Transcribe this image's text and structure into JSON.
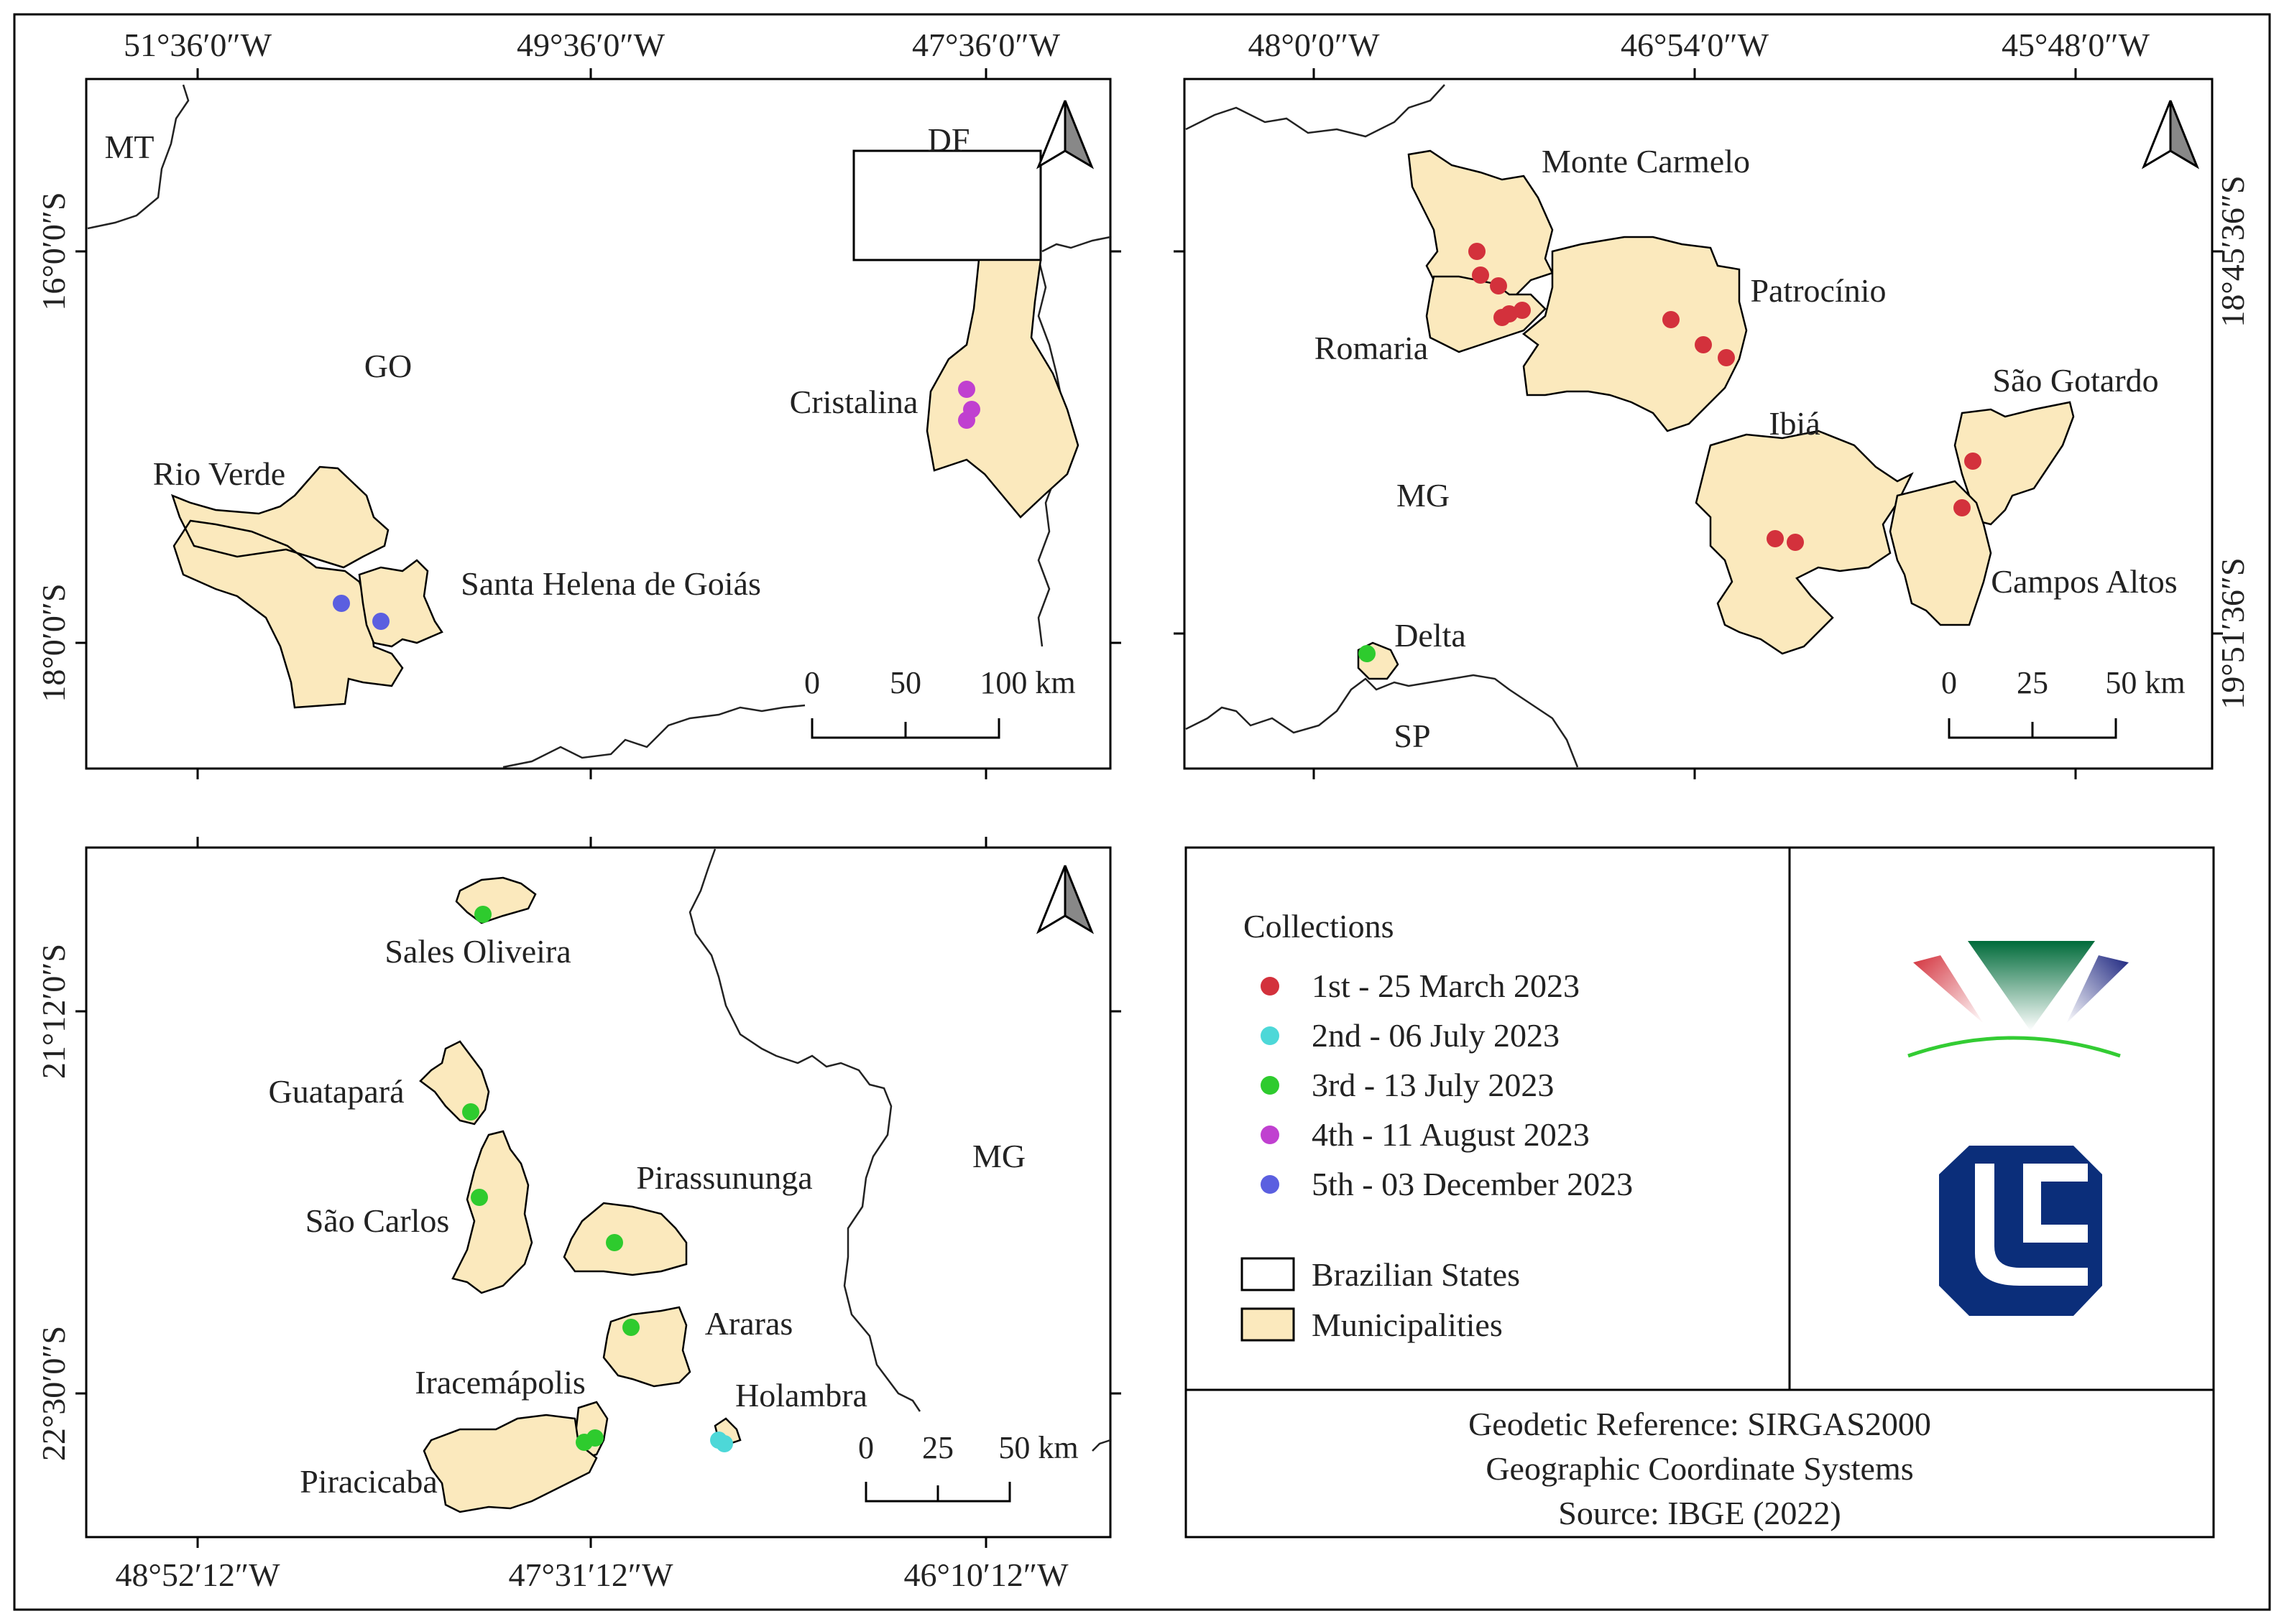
{
  "colors": {
    "municipality_fill": "#fbe9bd",
    "collection_1": "#d3313c",
    "collection_2": "#4dd8d8",
    "collection_3": "#2ecb2e",
    "collection_4": "#c040d0",
    "collection_5": "#5b5fe0",
    "logo_red": "#d3313c",
    "logo_green": "#006b3a",
    "logo_navy": "#1a237e",
    "logo_line": "#33cc33",
    "ufu_blue": "#0b2e7a"
  },
  "map_goias": {
    "top_ticks": [
      "51°36′0″W",
      "49°36′0″W",
      "47°36′0″W"
    ],
    "left_ticks": [
      "16°0′0″S",
      "18°0′0″S"
    ],
    "states": [
      "MT",
      "DF",
      "GO"
    ],
    "places": [
      "Rio Verde",
      "Santa Helena de Goiás",
      "Cristalina"
    ],
    "scale": {
      "labels": [
        "0",
        "50",
        "100 km"
      ]
    },
    "north_arrow": "north-arrow"
  },
  "map_minas": {
    "top_ticks": [
      "48°0′0″W",
      "46°54′0″W",
      "45°48′0″W"
    ],
    "right_ticks": [
      "18°45′36″S",
      "19°51′36″S"
    ],
    "states": [
      "MG",
      "SP"
    ],
    "places": [
      "Monte Carmelo",
      "Patrocínio",
      "Romaria",
      "Ibiá",
      "São Gotardo",
      "Campos Altos",
      "Delta"
    ],
    "scale": {
      "labels": [
        "0",
        "25",
        "50 km"
      ]
    }
  },
  "map_saopaulo": {
    "bottom_ticks": [
      "48°52′12″W",
      "47°31′12″W",
      "46°10′12″W"
    ],
    "left_ticks": [
      "21°12′0″S",
      "22°30′0″S"
    ],
    "states": [
      "MG"
    ],
    "places": [
      "Sales Oliveira",
      "Guatapará",
      "São Carlos",
      "Pirassununga",
      "Araras",
      "Iracemápolis",
      "Holambra",
      "Piracicaba"
    ],
    "scale": {
      "labels": [
        "0",
        "25",
        "50 km"
      ]
    }
  },
  "legend": {
    "title": "Collections",
    "items": [
      {
        "label": "1st - 25 March 2023"
      },
      {
        "label": "2nd - 06 July 2023"
      },
      {
        "label": "3rd - 13 July 2023"
      },
      {
        "label": "4th - 11 August 2023"
      },
      {
        "label": "5th - 03 December 2023"
      }
    ],
    "layers": [
      {
        "label": "Brazilian States"
      },
      {
        "label": "Municipalities"
      }
    ],
    "footer": [
      "Geodetic Reference: SIRGAS2000",
      "Geographic Coordinate Systems",
      "Source: IBGE (2022)"
    ]
  }
}
